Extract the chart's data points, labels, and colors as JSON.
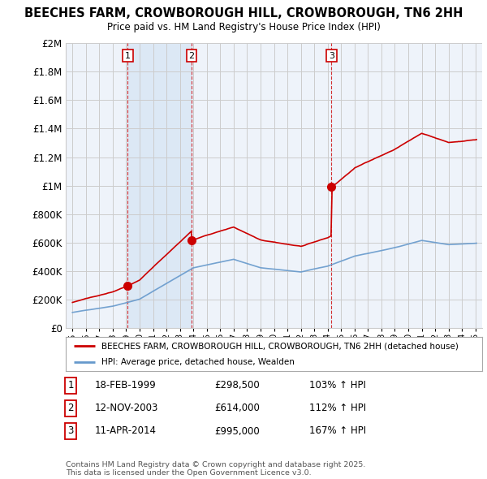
{
  "title": "BEECHES FARM, CROWBOROUGH HILL, CROWBOROUGH, TN6 2HH",
  "subtitle": "Price paid vs. HM Land Registry's House Price Index (HPI)",
  "red_label": "BEECHES FARM, CROWBOROUGH HILL, CROWBOROUGH, TN6 2HH (detached house)",
  "blue_label": "HPI: Average price, detached house, Wealden",
  "transactions": [
    {
      "num": 1,
      "date": "18-FEB-1999",
      "price": 298500,
      "hpi_pct": "103% ↑ HPI",
      "year": 1999.12
    },
    {
      "num": 2,
      "date": "12-NOV-2003",
      "price": 614000,
      "hpi_pct": "112% ↑ HPI",
      "year": 2003.87
    },
    {
      "num": 3,
      "date": "11-APR-2014",
      "price": 995000,
      "hpi_pct": "167% ↑ HPI",
      "year": 2014.28
    }
  ],
  "footnote": "Contains HM Land Registry data © Crown copyright and database right 2025.\nThis data is licensed under the Open Government Licence v3.0.",
  "ylim": [
    0,
    2000000
  ],
  "yticks": [
    0,
    200000,
    400000,
    600000,
    800000,
    1000000,
    1200000,
    1400000,
    1600000,
    1800000,
    2000000
  ],
  "xlim_start": 1994.5,
  "xlim_end": 2025.5,
  "xticks": [
    1995,
    1996,
    1997,
    1998,
    1999,
    2000,
    2001,
    2002,
    2003,
    2004,
    2005,
    2006,
    2007,
    2008,
    2009,
    2010,
    2011,
    2012,
    2013,
    2014,
    2015,
    2016,
    2017,
    2018,
    2019,
    2020,
    2021,
    2022,
    2023,
    2024,
    2025
  ],
  "red_color": "#cc0000",
  "blue_color": "#6699cc",
  "vline_color": "#cc0000",
  "grid_color": "#cccccc",
  "background_color": "#ffffff",
  "plot_bg_color": "#eef3fa",
  "shade_color": "#dce8f5"
}
